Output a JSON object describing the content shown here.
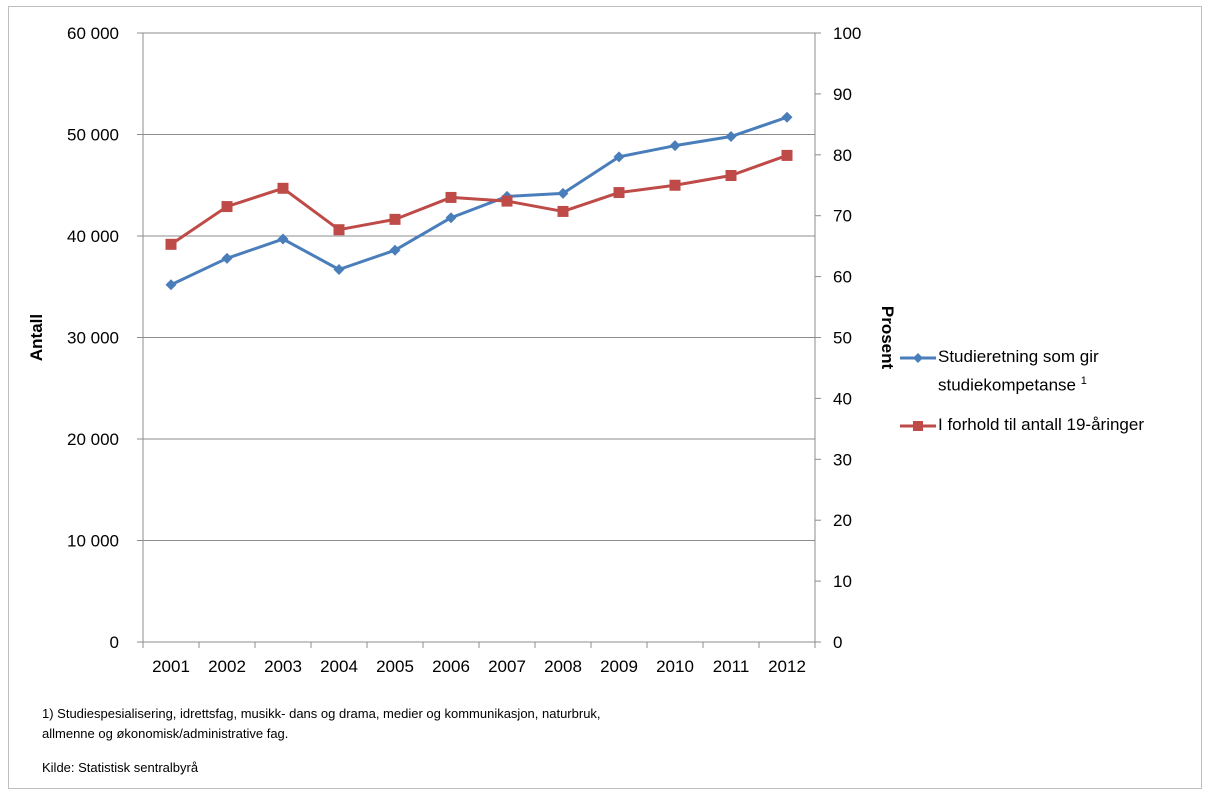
{
  "chart_data": {
    "type": "line",
    "categories": [
      "2001",
      "2002",
      "2003",
      "2004",
      "2005",
      "2006",
      "2007",
      "2008",
      "2009",
      "2010",
      "2011",
      "2012"
    ],
    "ylabel": "Antall",
    "y2label": "Prosent",
    "ylim": [
      0,
      60000
    ],
    "y2lim": [
      0,
      100
    ],
    "yticks": [
      0,
      10000,
      20000,
      30000,
      40000,
      50000,
      60000
    ],
    "ytick_labels": [
      "0",
      "10 000",
      "20 000",
      "30 000",
      "40 000",
      "50 000",
      "60 000"
    ],
    "y2ticks": [
      0,
      10,
      20,
      30,
      40,
      50,
      60,
      70,
      80,
      90,
      100
    ],
    "y2tick_labels": [
      "0",
      "10",
      "20",
      "30",
      "40",
      "50",
      "60",
      "70",
      "80",
      "90",
      "100"
    ],
    "grid": true,
    "legend_position": "right",
    "series": [
      {
        "name": "Studieretning som gir studiekompetanse",
        "name_line1": "Studieretning som gir",
        "name_line2": "studiekompetanse",
        "name_sup": "1",
        "axis": "left",
        "marker": "diamond",
        "color": "#4a7ebb",
        "values": [
          35200,
          37800,
          39700,
          36700,
          38600,
          41800,
          43900,
          44200,
          47800,
          48900,
          49800,
          51700
        ]
      },
      {
        "name": "I forhold til antall 19-åringer",
        "axis": "right",
        "marker": "square",
        "color": "#be4b48",
        "values": [
          65.3,
          71.5,
          74.5,
          67.7,
          69.4,
          73.0,
          72.4,
          70.7,
          73.8,
          75.0,
          76.6,
          79.9
        ]
      }
    ]
  },
  "footnote": {
    "line1": "1) Studiespesialisering, idrettsfag, musikk- dans og drama, medier og kommunikasjon, naturbruk,",
    "line2": "allmenne og økonomisk/administrative fag."
  },
  "source": "Kilde: Statistisk sentralbyrå"
}
